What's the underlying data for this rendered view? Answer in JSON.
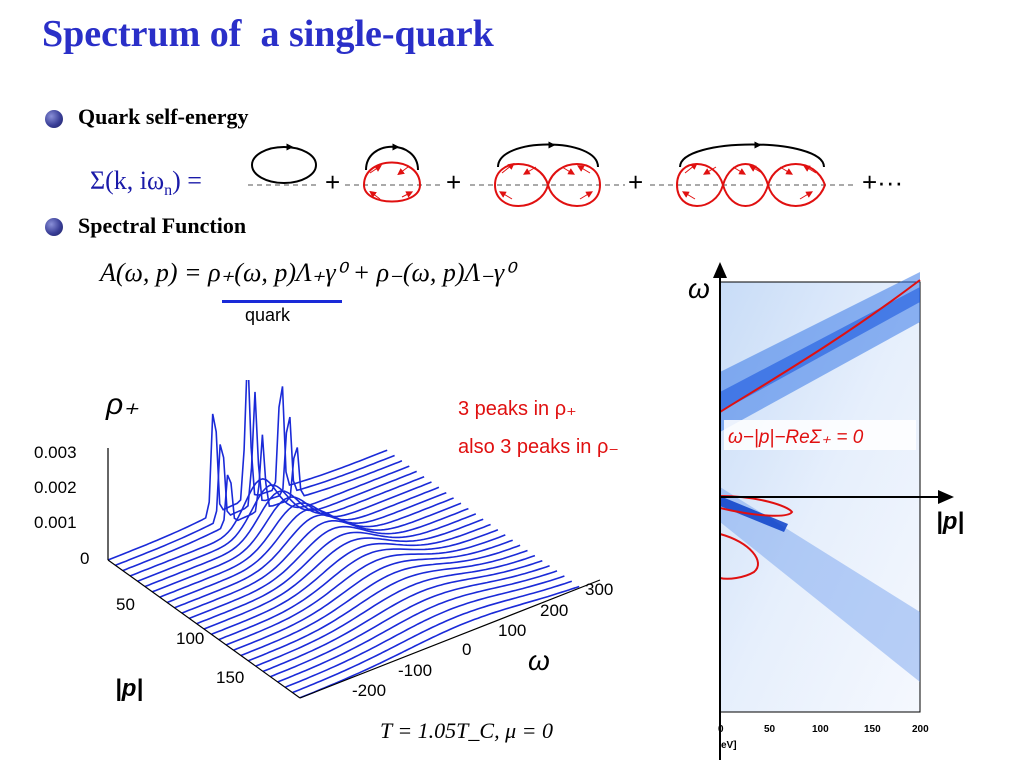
{
  "slide": {
    "title": "Spectrum of  a single-quark",
    "bullets": [
      {
        "label": "Quark self-energy"
      },
      {
        "label": "Spectral Function"
      }
    ],
    "self_energy_equation": "Σ(k, iω",
    "self_energy_sub": "n",
    "self_energy_tail": ") =",
    "plus_sign": "+",
    "plus_dots": "+···",
    "spectral_equation": "A(ω, p) = ρ₊(ω, p)Λ₊γ⁰ + ρ₋(ω, p)Λ₋γ⁰",
    "quark_label": "quark",
    "annotations": {
      "peaks_plus": "3 peaks in ρ₊",
      "peaks_minus": "also 3 peaks in ρ₋"
    },
    "condition_caption": "T = 1.05T_C, μ = 0",
    "colors": {
      "title": "#2a2fc8",
      "curves": "#1a2ad8",
      "annotation": "#e01010",
      "propagator": "#e01010"
    }
  },
  "chart_data": [
    {
      "type": "line",
      "subtype": "3d-waterfall",
      "zlabel": "ρ₊",
      "z_ticks": [
        "0.003",
        "0.002",
        "0.001",
        "0"
      ],
      "p_label": "|p|",
      "p_ticks": [
        "50",
        "100",
        "150"
      ],
      "omega_label": "ω",
      "omega_ticks": [
        "300",
        "200",
        "100",
        "0",
        "-100",
        "-200"
      ],
      "curve_count": 27,
      "peaks_count": 3
    },
    {
      "type": "heatmap",
      "ylabel": "ω",
      "xlabel": "|p|",
      "x_ticks": [
        "0",
        "50",
        "100",
        "150",
        "200"
      ],
      "x_unit_fragment": "eV]",
      "contour_label": "ω−|p|−ReΣ₊ = 0"
    }
  ]
}
